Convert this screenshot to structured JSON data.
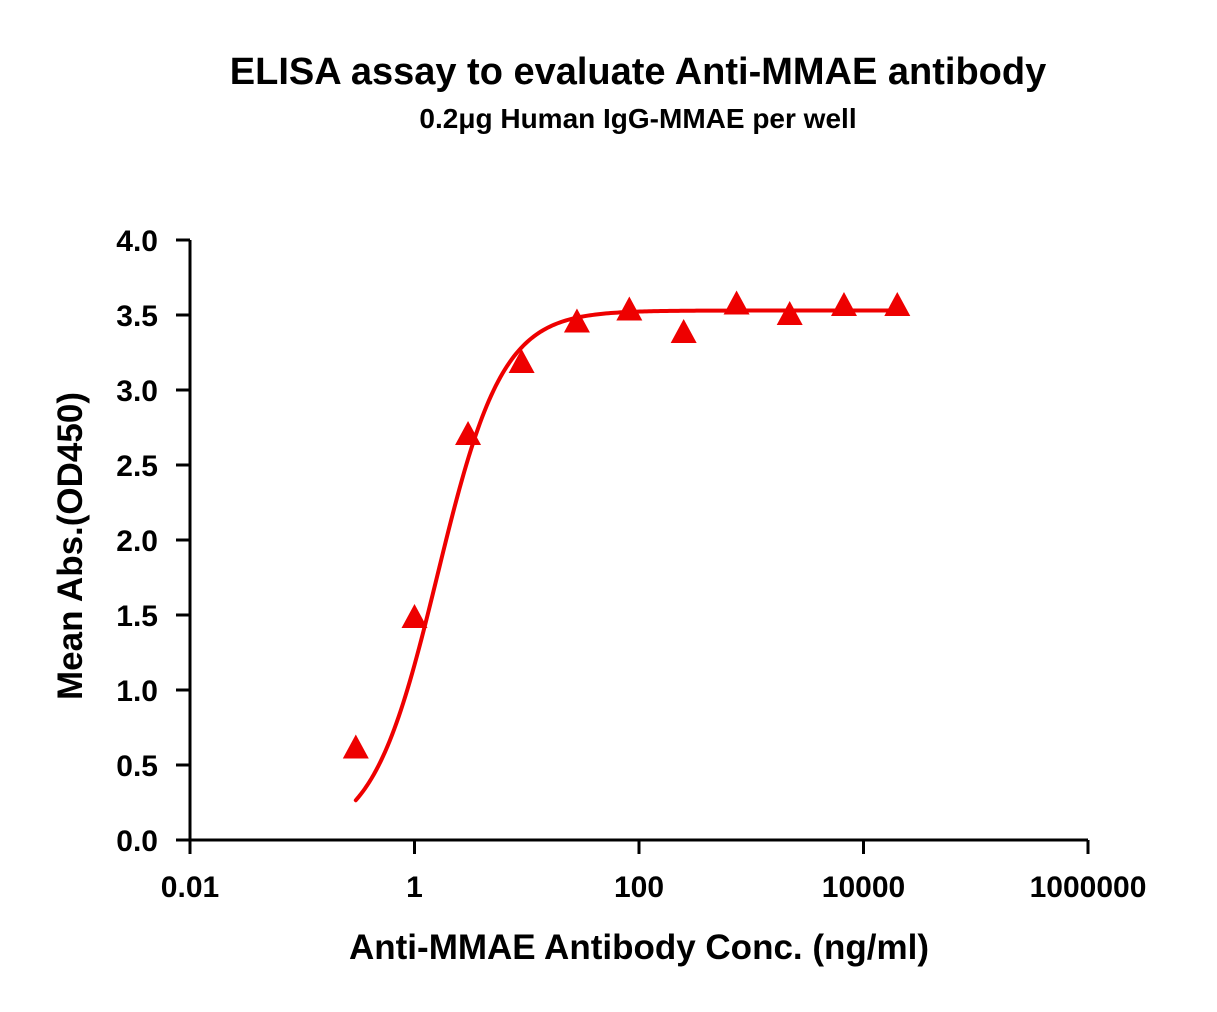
{
  "chart_data": {
    "type": "scatter",
    "title": "ELISA assay to evaluate Anti-MMAE antibody",
    "subtitle": "0.2μg Human IgG-MMAE per well",
    "xlabel": "Anti-MMAE Antibody Conc. (ng/ml)",
    "ylabel": "Mean Abs.(OD450)",
    "x_scale": "log10",
    "xlim": [
      0.01,
      1000000
    ],
    "ylim": [
      0.0,
      4.0
    ],
    "x_ticks": [
      0.01,
      1,
      100,
      10000,
      1000000
    ],
    "x_tick_labels": [
      "0.01",
      "1",
      "100",
      "10000",
      "1000000"
    ],
    "y_ticks": [
      0.0,
      0.5,
      1.0,
      1.5,
      2.0,
      2.5,
      3.0,
      3.5,
      4.0
    ],
    "y_tick_labels": [
      "0.0",
      "0.5",
      "1.0",
      "1.5",
      "2.0",
      "2.5",
      "3.0",
      "3.5",
      "4.0"
    ],
    "grid": false,
    "legend": "none",
    "series": [
      {
        "marker": "triangle",
        "color": "#ee0000",
        "points": [
          {
            "x": 0.3,
            "y": 0.61
          },
          {
            "x": 1.0,
            "y": 1.48
          },
          {
            "x": 3.0,
            "y": 2.7
          },
          {
            "x": 9.0,
            "y": 3.18
          },
          {
            "x": 28.0,
            "y": 3.45
          },
          {
            "x": 82.0,
            "y": 3.53
          },
          {
            "x": 250.0,
            "y": 3.38
          },
          {
            "x": 740.0,
            "y": 3.57
          },
          {
            "x": 2200.0,
            "y": 3.5
          },
          {
            "x": 6700.0,
            "y": 3.56
          },
          {
            "x": 20000.0,
            "y": 3.56
          }
        ]
      }
    ],
    "fit_curve": {
      "model": "4PL",
      "color": "#ee0000",
      "bottom": 0.0,
      "top": 3.53,
      "ec50": 1.6,
      "hill": 1.5,
      "x_range": [
        0.3,
        20000.0
      ]
    }
  }
}
